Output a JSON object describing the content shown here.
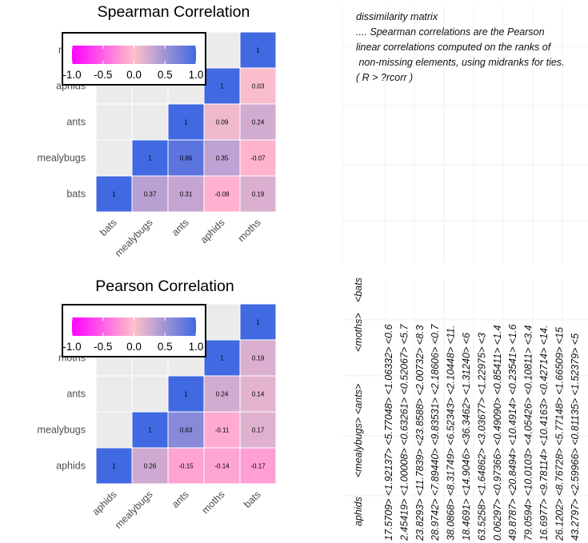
{
  "chart_data": [
    {
      "type": "heatmap",
      "title": "Spearman Correlation",
      "x_categories": [
        "bats",
        "mealybugs",
        "ants",
        "aphids",
        "moths"
      ],
      "y_categories": [
        "moths",
        "aphids",
        "ants",
        "mealybugs",
        "bats"
      ],
      "cells": [
        {
          "x": "moths",
          "y": "moths",
          "value": 1,
          "label": "1"
        },
        {
          "x": "aphids",
          "y": "aphids",
          "value": 1,
          "label": "1"
        },
        {
          "x": "moths",
          "y": "aphids",
          "value": 0.03,
          "label": "0.03"
        },
        {
          "x": "ants",
          "y": "ants",
          "value": 1,
          "label": "1"
        },
        {
          "x": "aphids",
          "y": "ants",
          "value": 0.09,
          "label": "0.09"
        },
        {
          "x": "moths",
          "y": "ants",
          "value": 0.24,
          "label": "0.24"
        },
        {
          "x": "mealybugs",
          "y": "mealybugs",
          "value": 1,
          "label": "1"
        },
        {
          "x": "ants",
          "y": "mealybugs",
          "value": 0.86,
          "label": "0.86"
        },
        {
          "x": "aphids",
          "y": "mealybugs",
          "value": 0.35,
          "label": "0.35"
        },
        {
          "x": "moths",
          "y": "mealybugs",
          "value": -0.07,
          "label": "-0.07"
        },
        {
          "x": "bats",
          "y": "bats",
          "value": 1,
          "label": "1"
        },
        {
          "x": "mealybugs",
          "y": "bats",
          "value": 0.37,
          "label": "0.37"
        },
        {
          "x": "ants",
          "y": "bats",
          "value": 0.31,
          "label": "0.31"
        },
        {
          "x": "aphids",
          "y": "bats",
          "value": -0.08,
          "label": "-0.08"
        },
        {
          "x": "moths",
          "y": "bats",
          "value": 0.19,
          "label": "0.19"
        }
      ],
      "legend": {
        "ticks": [
          "-1.0",
          "-0.5",
          "0.0",
          "0.5",
          "1.0"
        ],
        "range": [
          -1,
          1
        ]
      }
    },
    {
      "type": "heatmap",
      "title": "Pearson Correlation",
      "x_categories": [
        "aphids",
        "mealybugs",
        "ants",
        "moths",
        "bats"
      ],
      "y_categories": [
        "bats",
        "moths",
        "ants",
        "mealybugs",
        "aphids"
      ],
      "cells": [
        {
          "x": "bats",
          "y": "bats",
          "value": 1,
          "label": "1"
        },
        {
          "x": "moths",
          "y": "moths",
          "value": 1,
          "label": "1"
        },
        {
          "x": "bats",
          "y": "moths",
          "value": 0.19,
          "label": "0.19"
        },
        {
          "x": "ants",
          "y": "ants",
          "value": 1,
          "label": "1"
        },
        {
          "x": "moths",
          "y": "ants",
          "value": 0.24,
          "label": "0.24"
        },
        {
          "x": "bats",
          "y": "ants",
          "value": 0.14,
          "label": "0.14"
        },
        {
          "x": "mealybugs",
          "y": "mealybugs",
          "value": 1,
          "label": "1"
        },
        {
          "x": "ants",
          "y": "mealybugs",
          "value": 0.63,
          "label": "0.63"
        },
        {
          "x": "moths",
          "y": "mealybugs",
          "value": -0.11,
          "label": "-0.11"
        },
        {
          "x": "bats",
          "y": "mealybugs",
          "value": 0.17,
          "label": "0.17"
        },
        {
          "x": "aphids",
          "y": "aphids",
          "value": 1,
          "label": "1"
        },
        {
          "x": "mealybugs",
          "y": "aphids",
          "value": 0.26,
          "label": "0.26"
        },
        {
          "x": "ants",
          "y": "aphids",
          "value": -0.15,
          "label": "-0.15"
        },
        {
          "x": "moths",
          "y": "aphids",
          "value": -0.14,
          "label": "-0.14"
        },
        {
          "x": "bats",
          "y": "aphids",
          "value": -0.17,
          "label": "-0.17"
        }
      ],
      "legend": {
        "ticks": [
          "-1.0",
          "-0.5",
          "0.0",
          "0.5",
          "1.0"
        ],
        "range": [
          -1,
          1
        ]
      }
    }
  ],
  "colors": {
    "negative": "#ff00ff",
    "zero": "#ffc0cb",
    "positive": "#4169e1",
    "empty": "#ebebeb"
  },
  "note": {
    "lines": [
      "dissimilarity matrix",
      "",
      ".... Spearman correlations are the Pearson",
      "linear correlations computed on the ranks of",
      " non-missing elements, using midranks for ties.",
      "( R > ?rcorr )"
    ]
  },
  "matrix_text": {
    "headers": [
      "aphids",
      "<mealybugs>",
      "<ants>",
      "<moths>",
      "<bats"
    ],
    "columns": [
      "17.5709> <1.92137> <5.77048> <1.06332> <0.6",
      "2.45419> <1.00008> <0.63261> <0.52067> <5.7",
      "23.8293> <11.7839> <23.8588> <2.00732> <8.3",
      "28.9742> <7.89440> <9.83531> <2.18606> <0.7",
      "38.0868> <8.31749> <6.52343> <2.10448> <11.",
      "18.4691> <14.9046> <36.3462> <1.31240> <6",
      "63.5258> <1.64862> <3.03677> <1.22975> <3",
      "0.06297> <0.97366> <0.49090> <0.85411> <1.4",
      "49.8787> <20.8494> <10.4914> <0.23541> <1.6",
      "79.0594> <10.0103> <4.05426> <0.10811> <3.4",
      "16.6977> <9.78114> <10.4163> <0.42714> <14.",
      "26.1202> <8.76728> <5.77148> <1.66509> <15",
      "43.2797> <2.59966> <0.81135> <1.52379> <5"
    ]
  }
}
